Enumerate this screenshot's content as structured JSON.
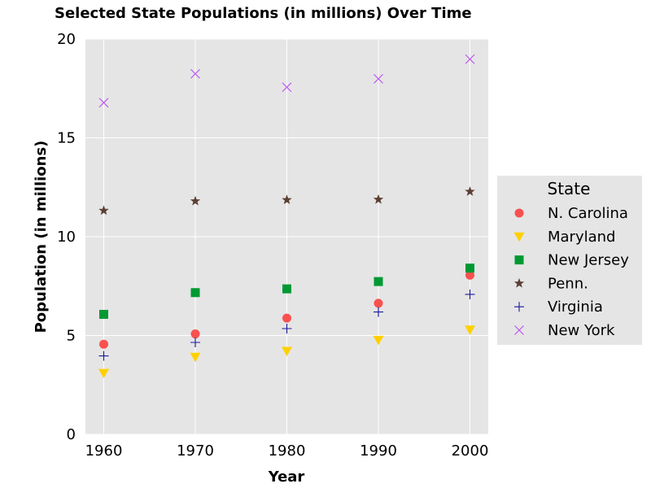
{
  "chart_data": {
    "type": "scatter",
    "title": "Selected State Populations (in millions) Over Time",
    "xlabel": "Year",
    "ylabel": "Population (in millions)",
    "xlim": [
      1958,
      2002
    ],
    "ylim": [
      0,
      20
    ],
    "x_ticks": [
      "1960",
      "1970",
      "1980",
      "1990",
      "2000"
    ],
    "y_ticks": [
      "0",
      "5",
      "10",
      "15",
      "20"
    ],
    "x": [
      1960,
      1970,
      1980,
      1990,
      2000
    ],
    "grid": true,
    "legend": {
      "title": "State",
      "placement": "center-right outside"
    },
    "series": [
      {
        "name": "N. Carolina",
        "marker": "circle",
        "color": "#F8514F",
        "values": [
          4.56,
          5.08,
          5.88,
          6.63,
          8.05
        ]
      },
      {
        "name": "Maryland",
        "marker": "triangle-down",
        "color": "#FFD000",
        "values": [
          3.1,
          3.92,
          4.22,
          4.78,
          5.3
        ]
      },
      {
        "name": "New Jersey",
        "marker": "square",
        "color": "#009933",
        "values": [
          6.07,
          7.17,
          7.36,
          7.73,
          8.41
        ]
      },
      {
        "name": "Penn.",
        "marker": "star",
        "color": "#5C4033",
        "values": [
          11.32,
          11.8,
          11.86,
          11.88,
          12.28
        ]
      },
      {
        "name": "Virginia",
        "marker": "plus",
        "color": "#1a1a9e",
        "values": [
          3.97,
          4.65,
          5.35,
          6.19,
          7.08
        ]
      },
      {
        "name": "New York",
        "marker": "x",
        "color": "#B84DF2",
        "values": [
          16.78,
          18.24,
          17.56,
          17.99,
          18.98
        ]
      }
    ]
  }
}
